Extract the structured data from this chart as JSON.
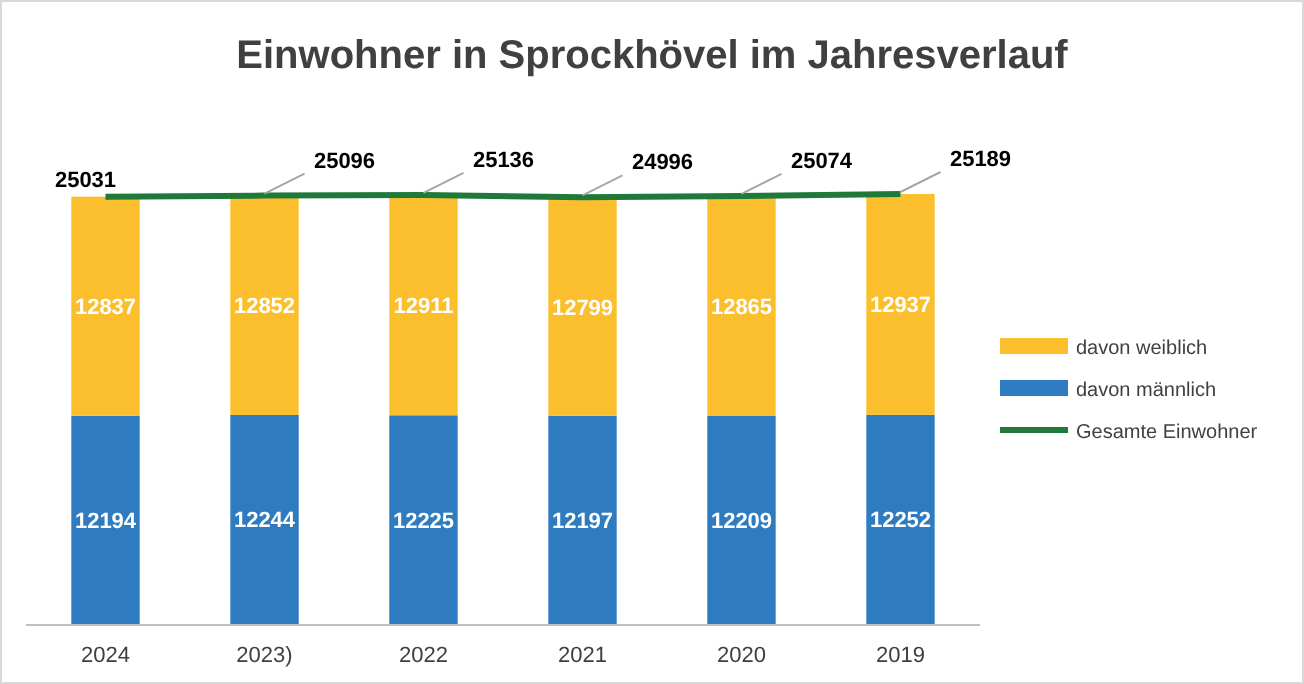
{
  "chart_data": {
    "type": "bar",
    "title": "Einwohner in Sprockhövel im Jahresverlauf",
    "categories": [
      "2024",
      "2023)",
      "2022",
      "2021",
      "2020",
      "2019"
    ],
    "stacked": true,
    "data_labels": true,
    "legend": "right",
    "series": [
      {
        "name": "davon männlich",
        "color": "#2e7bbf",
        "values": [
          12194,
          12244,
          12225,
          12197,
          12209,
          12252
        ]
      },
      {
        "name": "davon weiblich",
        "color": "#fbbf2d",
        "values": [
          12837,
          12852,
          12911,
          12799,
          12865,
          12937
        ]
      },
      {
        "name": "Gesamte Einwohner",
        "type": "line",
        "color": "#1f7a3a",
        "values": [
          25031,
          25096,
          25136,
          24996,
          25074,
          25189
        ]
      }
    ]
  }
}
